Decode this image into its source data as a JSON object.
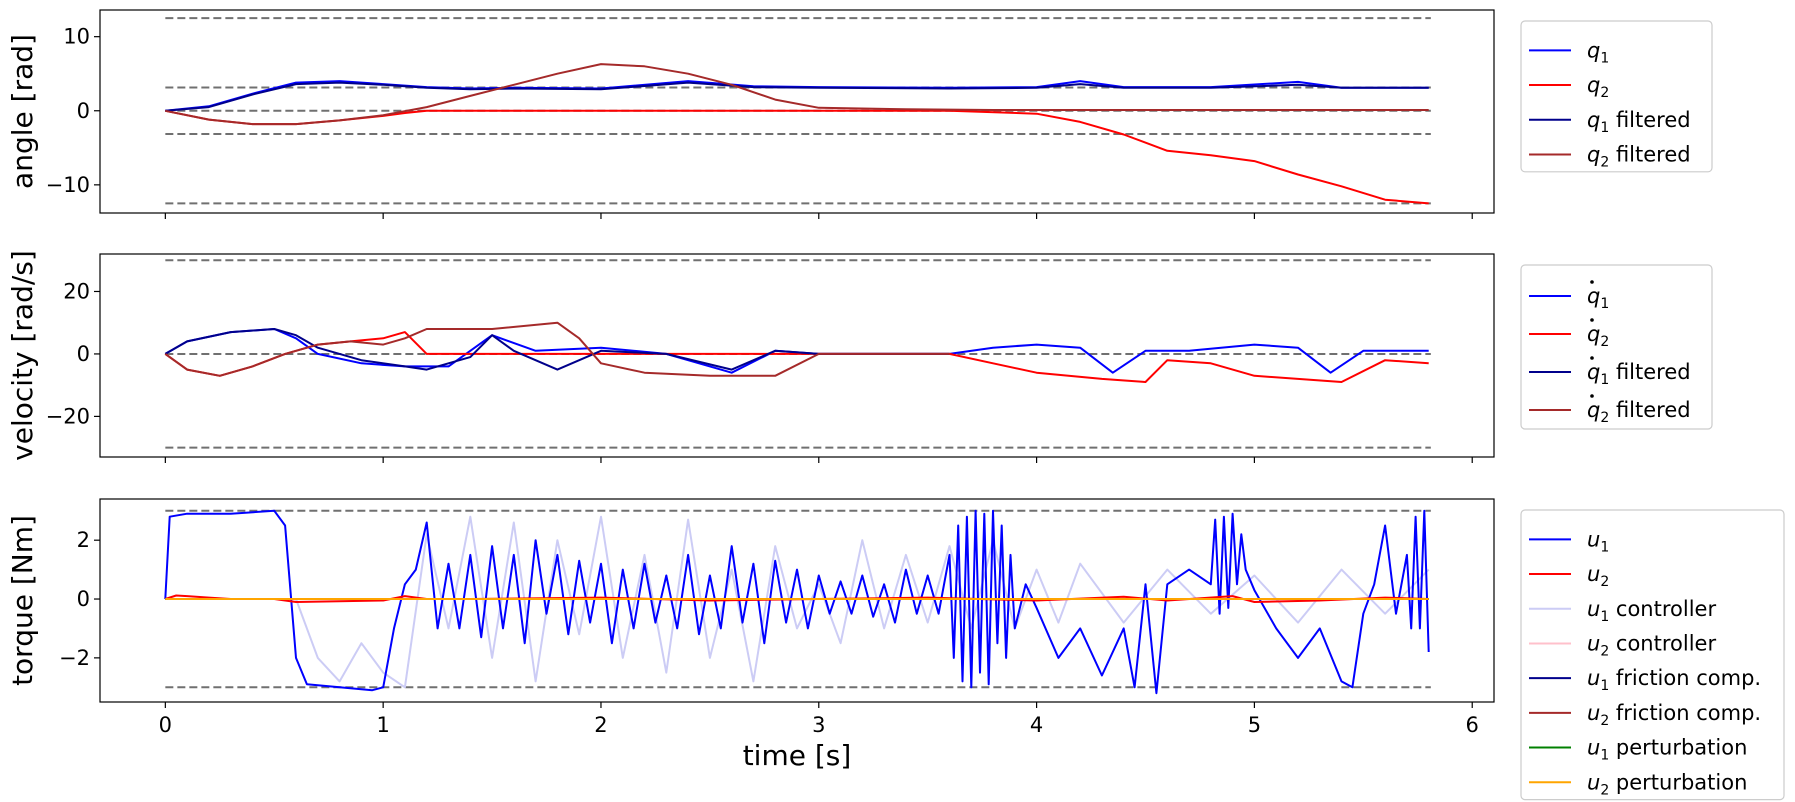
{
  "chart_data": [
    {
      "type": "line",
      "ylabel": "angle [rad]",
      "xlim": [
        -0.3,
        6.1
      ],
      "ylim": [
        -13.8,
        13.6
      ],
      "yticks": [
        10,
        0,
        -10
      ],
      "ytick_labels": [
        "10",
        "0",
        "−10"
      ],
      "limit_lines": [
        12.5,
        3.14,
        0,
        -3.14,
        -12.5
      ],
      "series": [
        {
          "name": "q1",
          "sub": "1",
          "suffix": "",
          "dot": false,
          "color": "#0000ff",
          "x": [
            0,
            0.2,
            0.4,
            0.6,
            0.8,
            1.0,
            1.2,
            1.4,
            1.6,
            2.0,
            2.4,
            2.7,
            3.0,
            3.6,
            4.0,
            4.2,
            4.4,
            4.8,
            5.2,
            5.4,
            5.8
          ],
          "y": [
            0,
            0.6,
            2.3,
            3.8,
            4.0,
            3.6,
            3.2,
            3.0,
            3.1,
            3.0,
            4.0,
            3.3,
            3.2,
            3.1,
            3.2,
            4.0,
            3.2,
            3.2,
            3.9,
            3.1,
            3.1
          ]
        },
        {
          "name": "q2",
          "sub": "2",
          "suffix": "",
          "dot": false,
          "color": "#ff0000",
          "x": [
            0,
            0.2,
            0.4,
            0.6,
            0.8,
            1.0,
            1.1,
            1.2,
            2.0,
            3.0,
            3.6,
            4.0,
            4.2,
            4.4,
            4.6,
            4.8,
            5.0,
            5.2,
            5.4,
            5.6,
            5.8
          ],
          "y": [
            0,
            -1.2,
            -1.8,
            -1.8,
            -1.3,
            -0.7,
            -0.3,
            0,
            0,
            0,
            0,
            -0.4,
            -1.5,
            -3.2,
            -5.4,
            -6.0,
            -6.8,
            -8.6,
            -10.2,
            -12.0,
            -12.5
          ]
        },
        {
          "name": "q1 filtered",
          "sub": "1",
          "suffix": " filtered",
          "dot": false,
          "color": "#00008b",
          "x": [
            0,
            0.2,
            0.4,
            0.6,
            0.8,
            1.0,
            1.2,
            1.4,
            1.6,
            2.0,
            2.4,
            2.7,
            3.0,
            3.6,
            4.0,
            4.2,
            4.4,
            4.8,
            5.2,
            5.4,
            5.8
          ],
          "y": [
            0,
            0.5,
            2.2,
            3.6,
            3.8,
            3.5,
            3.1,
            2.9,
            3.0,
            2.9,
            3.8,
            3.2,
            3.1,
            3.0,
            3.1,
            3.6,
            3.1,
            3.1,
            3.5,
            3.1,
            3.1
          ]
        },
        {
          "name": "q2 filtered",
          "sub": "2",
          "suffix": " filtered",
          "dot": false,
          "color": "#a52a2a",
          "x": [
            0,
            0.2,
            0.4,
            0.6,
            0.8,
            1.0,
            1.2,
            1.4,
            1.6,
            1.8,
            2.0,
            2.2,
            2.4,
            2.6,
            2.8,
            3.0,
            3.4,
            3.8,
            4.0,
            4.5,
            5.0,
            5.8
          ],
          "y": [
            0,
            -1.2,
            -1.8,
            -1.8,
            -1.3,
            -0.6,
            0.5,
            2.0,
            3.5,
            5.0,
            6.3,
            6.0,
            5.0,
            3.5,
            1.5,
            0.4,
            0.2,
            0.1,
            0.1,
            0.1,
            0.1,
            0.1
          ]
        }
      ]
    },
    {
      "type": "line",
      "ylabel": "velocity [rad/s]",
      "xlim": [
        -0.3,
        6.1
      ],
      "ylim": [
        -33,
        32
      ],
      "yticks": [
        20,
        0,
        -20
      ],
      "ytick_labels": [
        "20",
        "0",
        "−20"
      ],
      "limit_lines": [
        30,
        0,
        -30
      ],
      "series": [
        {
          "name": "q1 dot",
          "sub": "1",
          "suffix": "",
          "dot": true,
          "color": "#0000ff",
          "x": [
            0,
            0.1,
            0.3,
            0.5,
            0.6,
            0.7,
            0.9,
            1.1,
            1.3,
            1.5,
            1.7,
            2.0,
            2.3,
            2.6,
            2.8,
            3.0,
            3.6,
            3.8,
            4.0,
            4.2,
            4.35,
            4.5,
            4.7,
            5.0,
            5.2,
            5.35,
            5.5,
            5.8
          ],
          "y": [
            0,
            4,
            7,
            8,
            5,
            0,
            -3,
            -4,
            -4,
            6,
            1,
            2,
            0,
            -6,
            1,
            0,
            0,
            2,
            3,
            2,
            -6,
            1,
            1,
            3,
            2,
            -6,
            1,
            1
          ]
        },
        {
          "name": "q2 dot",
          "sub": "2",
          "suffix": "",
          "dot": true,
          "color": "#ff0000",
          "x": [
            0,
            0.1,
            0.25,
            0.4,
            0.55,
            0.7,
            0.85,
            1.0,
            1.1,
            1.2,
            3.0,
            3.6,
            3.8,
            4.0,
            4.3,
            4.5,
            4.6,
            4.8,
            5.0,
            5.4,
            5.6,
            5.8
          ],
          "y": [
            0,
            -5,
            -7,
            -4,
            0,
            3,
            4,
            5,
            7,
            0,
            0,
            0,
            -3,
            -6,
            -8,
            -9,
            -2,
            -3,
            -7,
            -9,
            -2,
            -3
          ]
        },
        {
          "name": "q1 dot filtered",
          "sub": "1",
          "suffix": " filtered",
          "dot": true,
          "color": "#00008b",
          "x": [
            0,
            0.1,
            0.3,
            0.5,
            0.6,
            0.7,
            0.9,
            1.1,
            1.2,
            1.4,
            1.5,
            1.6,
            1.8,
            2.0,
            2.3,
            2.6,
            2.8,
            3.0,
            3.6
          ],
          "y": [
            0,
            4,
            7,
            8,
            6,
            2,
            -2,
            -4,
            -5,
            -1,
            6,
            1,
            -5,
            1,
            0,
            -5,
            1,
            0,
            0
          ]
        },
        {
          "name": "q2 dot filtered",
          "sub": "2",
          "suffix": " filtered",
          "dot": true,
          "color": "#a52a2a",
          "x": [
            0,
            0.1,
            0.25,
            0.4,
            0.55,
            0.7,
            0.85,
            1.0,
            1.1,
            1.2,
            1.5,
            1.8,
            1.9,
            2.0,
            2.2,
            2.5,
            2.8,
            3.0,
            3.6
          ],
          "y": [
            0,
            -5,
            -7,
            -4,
            0,
            3,
            4,
            3,
            5,
            8,
            8,
            10,
            5,
            -3,
            -6,
            -7,
            -7,
            0,
            0
          ]
        }
      ]
    },
    {
      "type": "line",
      "ylabel": "torque [Nm]",
      "xlabel": "time [s]",
      "xlim": [
        -0.3,
        6.1
      ],
      "ylim": [
        -3.5,
        3.4
      ],
      "xticks": [
        0,
        1,
        2,
        3,
        4,
        5,
        6
      ],
      "xtick_labels": [
        "0",
        "1",
        "2",
        "3",
        "4",
        "5",
        "6"
      ],
      "yticks": [
        2,
        0,
        -2
      ],
      "ytick_labels": [
        "2",
        "0",
        "−2"
      ],
      "limit_lines": [
        3,
        -3
      ],
      "series": [
        {
          "name": "u1 controller",
          "sub": "1",
          "suffix": " controller",
          "dot": false,
          "color": "#ccccf5",
          "x": [
            0,
            0.6,
            0.7,
            0.8,
            0.9,
            1.0,
            1.1,
            1.2,
            1.3,
            1.4,
            1.5,
            1.6,
            1.7,
            1.8,
            1.9,
            2.0,
            2.1,
            2.2,
            2.3,
            2.4,
            2.5,
            2.6,
            2.7,
            2.8,
            2.9,
            3.0,
            3.1,
            3.2,
            3.3,
            3.4,
            3.5,
            3.6,
            3.7,
            3.8,
            3.9,
            4.0,
            4.1,
            4.2,
            4.4,
            4.6,
            4.8,
            5.0,
            5.2,
            5.4,
            5.6,
            5.8
          ],
          "y": [
            0,
            0,
            -2.0,
            -2.8,
            -1.5,
            -2.5,
            -3.0,
            2.2,
            -1.0,
            2.8,
            -2.0,
            2.6,
            -2.8,
            2.0,
            -1.2,
            2.8,
            -2.0,
            1.5,
            -2.5,
            2.7,
            -2.0,
            1.0,
            -2.8,
            1.8,
            -1.0,
            0.5,
            -1.5,
            2.0,
            -1.0,
            1.5,
            -0.8,
            1.8,
            -1.0,
            2.0,
            -1.0,
            1.0,
            -0.8,
            1.2,
            -0.8,
            1.0,
            -0.5,
            0.8,
            -0.8,
            1.0,
            -0.5,
            1.0
          ]
        },
        {
          "name": "u2 controller",
          "sub": "2",
          "suffix": " controller",
          "dot": false,
          "color": "#ffc0cb",
          "x": [
            0,
            5.8
          ],
          "y": [
            0,
            0
          ]
        },
        {
          "name": "u1",
          "sub": "1",
          "suffix": "",
          "dot": false,
          "color": "#0000ff",
          "x": [
            0,
            0.02,
            0.1,
            0.3,
            0.5,
            0.55,
            0.6,
            0.65,
            0.8,
            0.95,
            1.0,
            1.05,
            1.1,
            1.15,
            1.2,
            1.25,
            1.3,
            1.35,
            1.4,
            1.45,
            1.5,
            1.55,
            1.6,
            1.65,
            1.7,
            1.75,
            1.8,
            1.85,
            1.9,
            1.95,
            2.0,
            2.05,
            2.1,
            2.15,
            2.2,
            2.25,
            2.3,
            2.35,
            2.4,
            2.45,
            2.5,
            2.55,
            2.6,
            2.65,
            2.7,
            2.75,
            2.8,
            2.85,
            2.9,
            2.95,
            3.0,
            3.05,
            3.1,
            3.15,
            3.2,
            3.25,
            3.3,
            3.35,
            3.4,
            3.45,
            3.5,
            3.55,
            3.6,
            3.62,
            3.64,
            3.66,
            3.68,
            3.7,
            3.72,
            3.74,
            3.76,
            3.78,
            3.8,
            3.82,
            3.84,
            3.86,
            3.88,
            3.9,
            3.95,
            4.0,
            4.1,
            4.2,
            4.3,
            4.4,
            4.45,
            4.5,
            4.55,
            4.6,
            4.7,
            4.8,
            4.82,
            4.84,
            4.86,
            4.88,
            4.9,
            4.92,
            4.94,
            4.96,
            5.0,
            5.1,
            5.2,
            5.3,
            5.4,
            5.45,
            5.5,
            5.55,
            5.6,
            5.65,
            5.7,
            5.72,
            5.74,
            5.76,
            5.78,
            5.8
          ],
          "y": [
            0,
            2.8,
            2.9,
            2.9,
            3.0,
            2.5,
            -2.0,
            -2.9,
            -3.0,
            -3.1,
            -3.0,
            -1.0,
            0.5,
            1.0,
            2.6,
            -1.0,
            1.2,
            -1.0,
            1.5,
            -1.3,
            1.8,
            -1.0,
            1.5,
            -1.5,
            2.0,
            -0.5,
            1.5,
            -1.2,
            1.3,
            -0.8,
            1.2,
            -1.5,
            1.0,
            -1.0,
            1.2,
            -0.8,
            0.8,
            -1.0,
            1.5,
            -1.2,
            0.8,
            -1.0,
            1.8,
            -0.8,
            1.2,
            -1.5,
            1.3,
            -0.8,
            1.0,
            -1.0,
            0.8,
            -0.5,
            0.6,
            -0.5,
            0.8,
            -0.6,
            0.5,
            -0.8,
            1.0,
            -0.5,
            0.8,
            -0.5,
            1.5,
            -2.0,
            2.5,
            -2.8,
            2.8,
            -3.0,
            3.0,
            -2.5,
            2.9,
            -2.9,
            3.0,
            -1.5,
            2.5,
            -2.0,
            1.5,
            -1.0,
            0.5,
            -0.3,
            -2.0,
            -1.0,
            -2.6,
            -1.0,
            -3.0,
            0.5,
            -3.2,
            0.5,
            1.0,
            0.5,
            2.7,
            -0.5,
            2.8,
            -0.3,
            2.9,
            0.5,
            2.2,
            1.0,
            0.3,
            -1.0,
            -2.0,
            -1.0,
            -2.8,
            -3.0,
            -0.5,
            0.5,
            2.5,
            -0.5,
            1.5,
            -1.0,
            2.8,
            -1.0,
            3.0,
            -1.8
          ]
        },
        {
          "name": "u2",
          "sub": "2",
          "suffix": "",
          "dot": false,
          "color": "#ff0000",
          "x": [
            0,
            0.05,
            0.1,
            0.2,
            0.3,
            0.5,
            0.6,
            1.0,
            1.1,
            1.2,
            1.4,
            2.0,
            2.5,
            3.0,
            3.5,
            4.0,
            4.4,
            4.6,
            4.9,
            5.0,
            5.3,
            5.6,
            5.8
          ],
          "y": [
            0,
            0.12,
            0.1,
            0.05,
            0,
            0,
            -0.1,
            -0.05,
            0.1,
            0,
            0,
            0.05,
            -0.05,
            0,
            0.05,
            -0.05,
            0.08,
            -0.05,
            0.1,
            -0.1,
            -0.05,
            0.05,
            0
          ]
        },
        {
          "name": "u1 friction comp.",
          "sub": "1",
          "suffix": " friction comp.",
          "dot": false,
          "color": "#00008b",
          "x": [
            0,
            5.8
          ],
          "y": [
            0,
            0
          ]
        },
        {
          "name": "u2 friction comp.",
          "sub": "2",
          "suffix": " friction comp.",
          "dot": false,
          "color": "#a52a2a",
          "x": [
            0,
            5.8
          ],
          "y": [
            0,
            0
          ]
        },
        {
          "name": "u1 perturbation",
          "sub": "1",
          "suffix": " perturbation",
          "dot": false,
          "color": "#008000",
          "x": [
            0,
            5.8
          ],
          "y": [
            0,
            0
          ]
        },
        {
          "name": "u2 perturbation",
          "sub": "2",
          "suffix": " perturbation",
          "dot": false,
          "color": "#ffa500",
          "x": [
            0,
            5.8
          ],
          "y": [
            0,
            0
          ]
        }
      ],
      "legend_order": [
        "u1",
        "u2",
        "u1 controller",
        "u2 controller",
        "u1 friction comp.",
        "u2 friction comp.",
        "u1 perturbation",
        "u2 perturbation"
      ]
    }
  ],
  "legend_letters": [
    "q",
    "q",
    "q",
    "q",
    "q",
    "q",
    "q",
    "q",
    "u",
    "u",
    "u",
    "u",
    "u",
    "u",
    "u",
    "u"
  ]
}
